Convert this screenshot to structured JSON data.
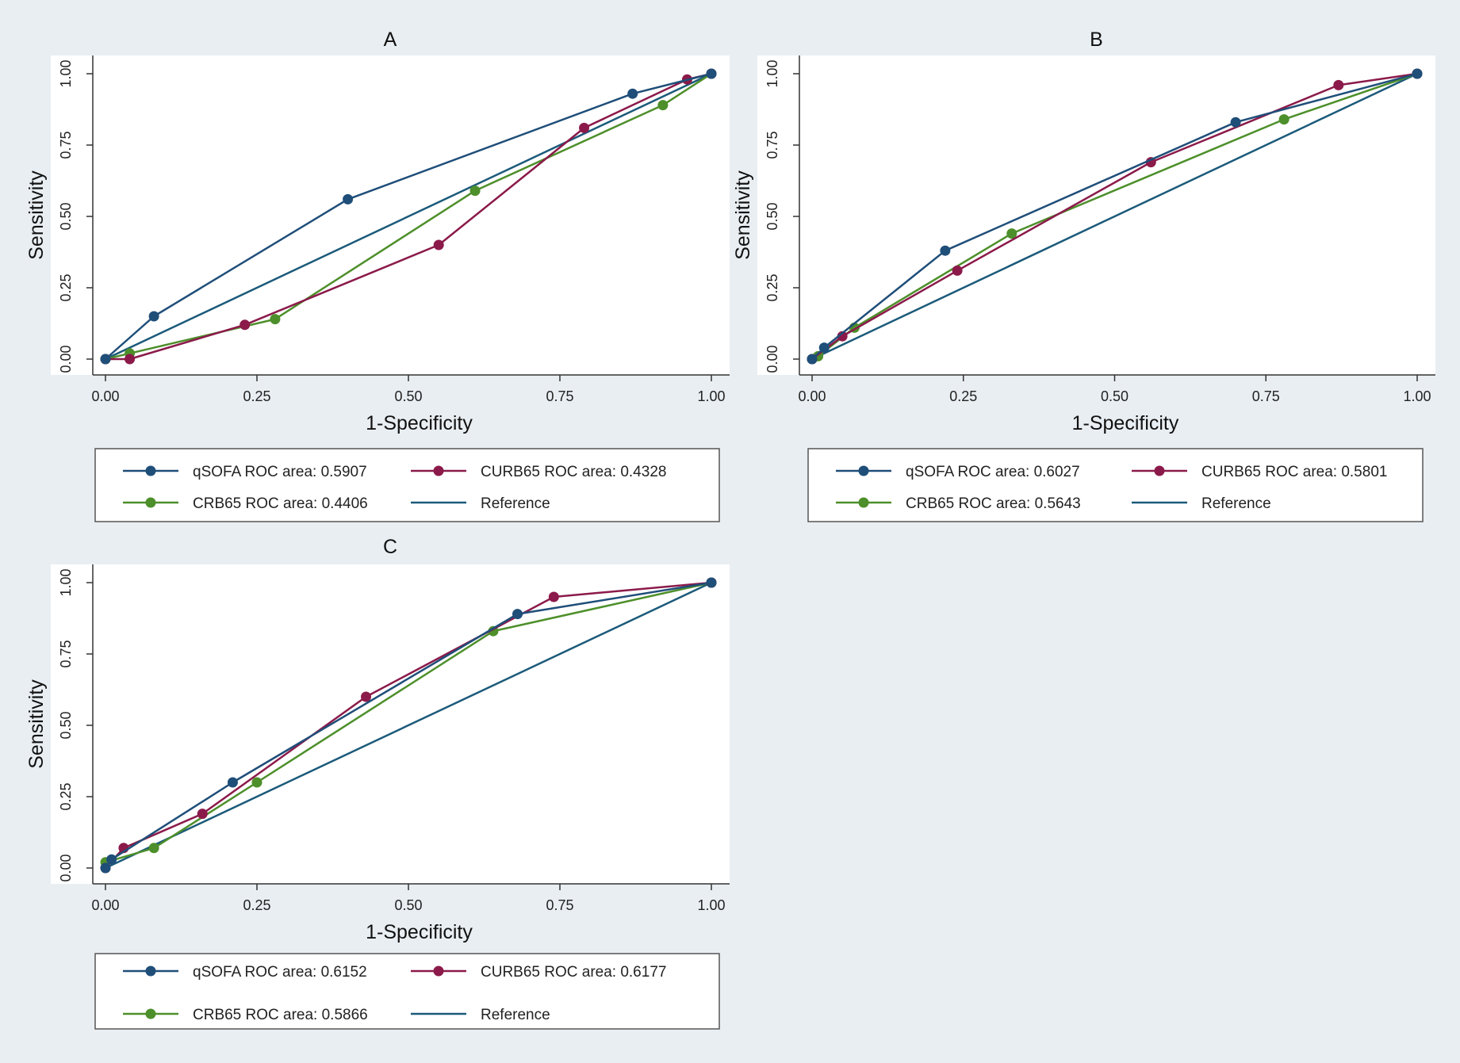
{
  "chart_data": [
    {
      "type": "line",
      "title": "A",
      "xlabel": "1-Specificity",
      "ylabel": "Sensitivity",
      "xlim": [
        0,
        1
      ],
      "ylim": [
        0,
        1
      ],
      "x_ticks": [
        "0.00",
        "0.25",
        "0.50",
        "0.75",
        "1.00"
      ],
      "y_ticks": [
        "0.00",
        "0.25",
        "0.50",
        "0.75",
        "1.00"
      ],
      "grid": false,
      "legend_position": "bottom",
      "series": [
        {
          "name": "qSOFA ROC area: 0.5907",
          "color": "#1f4e79",
          "markers": true,
          "x": [
            0,
            0.08,
            0.4,
            0.87,
            1.0
          ],
          "y": [
            0,
            0.15,
            0.56,
            0.93,
            1.0
          ]
        },
        {
          "name": "CURB65 ROC area: 0.4328",
          "color": "#8b1a4a",
          "markers": true,
          "x": [
            0,
            0.04,
            0.23,
            0.55,
            0.79,
            0.96,
            1.0
          ],
          "y": [
            0,
            0.0,
            0.12,
            0.4,
            0.81,
            0.98,
            1.0
          ]
        },
        {
          "name": "CRB65 ROC area: 0.4406",
          "color": "#4d8f2a",
          "markers": true,
          "x": [
            0,
            0.04,
            0.28,
            0.61,
            0.92,
            1.0
          ],
          "y": [
            0,
            0.02,
            0.14,
            0.59,
            0.89,
            1.0
          ]
        },
        {
          "name": "Reference",
          "color": "#1b5a7a",
          "markers": false,
          "x": [
            0,
            1
          ],
          "y": [
            0,
            1
          ]
        }
      ]
    },
    {
      "type": "line",
      "title": "B",
      "xlabel": "1-Specificity",
      "ylabel": "Sensitivity",
      "xlim": [
        0,
        1
      ],
      "ylim": [
        0,
        1
      ],
      "x_ticks": [
        "0.00",
        "0.25",
        "0.50",
        "0.75",
        "1.00"
      ],
      "y_ticks": [
        "0.00",
        "0.25",
        "0.50",
        "0.75",
        "1.00"
      ],
      "grid": false,
      "legend_position": "bottom",
      "series": [
        {
          "name": "qSOFA ROC area: 0.6027",
          "color": "#1f4e79",
          "markers": true,
          "x": [
            0,
            0.02,
            0.22,
            0.7,
            1.0
          ],
          "y": [
            0,
            0.04,
            0.38,
            0.83,
            1.0
          ]
        },
        {
          "name": "CURB65 ROC area: 0.5801",
          "color": "#8b1a4a",
          "markers": true,
          "x": [
            0,
            0.05,
            0.24,
            0.56,
            0.87,
            1.0
          ],
          "y": [
            0,
            0.08,
            0.31,
            0.69,
            0.96,
            1.0
          ]
        },
        {
          "name": "CRB65 ROC area: 0.5643",
          "color": "#4d8f2a",
          "markers": true,
          "x": [
            0,
            0.01,
            0.07,
            0.33,
            0.78,
            1.0
          ],
          "y": [
            0,
            0.01,
            0.11,
            0.44,
            0.84,
            1.0
          ]
        },
        {
          "name": "Reference",
          "color": "#1b5a7a",
          "markers": false,
          "x": [
            0,
            1
          ],
          "y": [
            0,
            1
          ]
        }
      ]
    },
    {
      "type": "line",
      "title": "C",
      "xlabel": "1-Specificity",
      "ylabel": "Sensitivity",
      "xlim": [
        0,
        1
      ],
      "ylim": [
        0,
        1
      ],
      "x_ticks": [
        "0.00",
        "0.25",
        "0.50",
        "0.75",
        "1.00"
      ],
      "y_ticks": [
        "0.00",
        "0.25",
        "0.50",
        "0.75",
        "1.00"
      ],
      "grid": false,
      "legend_position": "bottom",
      "series": [
        {
          "name": "qSOFA ROC area: 0.6152",
          "color": "#1f4e79",
          "markers": true,
          "x": [
            0,
            0.01,
            0.21,
            0.68,
            1.0
          ],
          "y": [
            0,
            0.03,
            0.3,
            0.89,
            1.0
          ]
        },
        {
          "name": "CURB65 ROC area: 0.6177",
          "color": "#8b1a4a",
          "markers": true,
          "x": [
            0,
            0.03,
            0.16,
            0.43,
            0.74,
            1.0
          ],
          "y": [
            0,
            0.07,
            0.19,
            0.6,
            0.95,
            1.0
          ]
        },
        {
          "name": "CRB65 ROC area: 0.5866",
          "color": "#4d8f2a",
          "markers": true,
          "x": [
            0,
            0.0,
            0.08,
            0.25,
            0.64,
            1.0
          ],
          "y": [
            0,
            0.02,
            0.07,
            0.3,
            0.83,
            1.0
          ]
        },
        {
          "name": "Reference",
          "color": "#1b5a7a",
          "markers": false,
          "x": [
            0,
            1
          ],
          "y": [
            0,
            1
          ]
        }
      ]
    }
  ]
}
